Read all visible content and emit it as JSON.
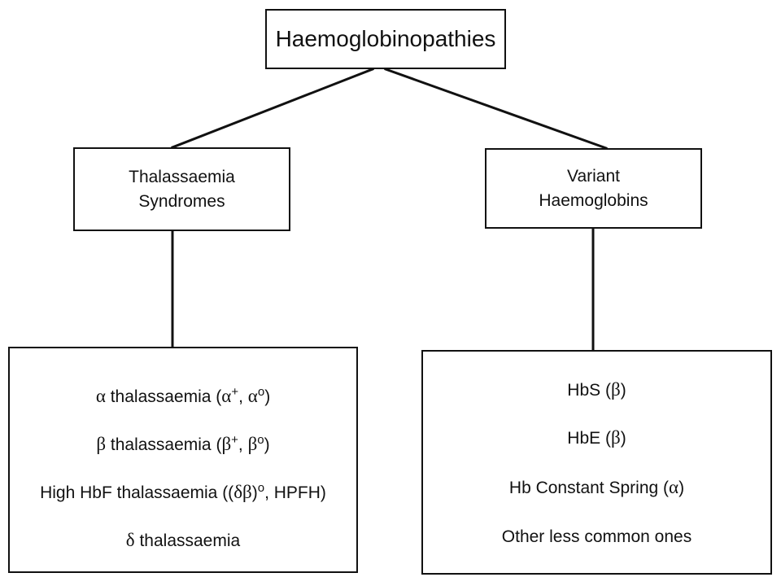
{
  "root": {
    "label": "Haemoglobinopathies"
  },
  "branches": [
    {
      "label_line1": "Thalassaemia",
      "label_line2": "Syndromes",
      "items": [
        {
          "greek": "α",
          "text": " thalassaemia (",
          "g1": "α",
          "s1": "+",
          "mid": ", ",
          "g2": "α",
          "s2": "o",
          "end": ")"
        },
        {
          "greek": "β",
          "text": " thalassaemia (",
          "g1": "β",
          "s1": "+",
          "mid": ", ",
          "g2": "β",
          "s2": "o",
          "end": ")"
        },
        {
          "text": "High HbF thalassaemia ((",
          "g1": "δβ",
          "mid": ")",
          "s1": "o",
          "end": ", HPFH)"
        },
        {
          "greek": "δ",
          "text": " thalassaemia"
        }
      ]
    },
    {
      "label_line1": "Variant",
      "label_line2": "Haemoglobins",
      "items": [
        {
          "text": "HbS (",
          "g1": "β",
          "end": ")"
        },
        {
          "text": "HbE (",
          "g1": "β",
          "end": ")"
        },
        {
          "text": "Hb Constant Spring (",
          "g1": "α",
          "end": ")"
        },
        {
          "text": "Other less common ones"
        }
      ]
    }
  ]
}
